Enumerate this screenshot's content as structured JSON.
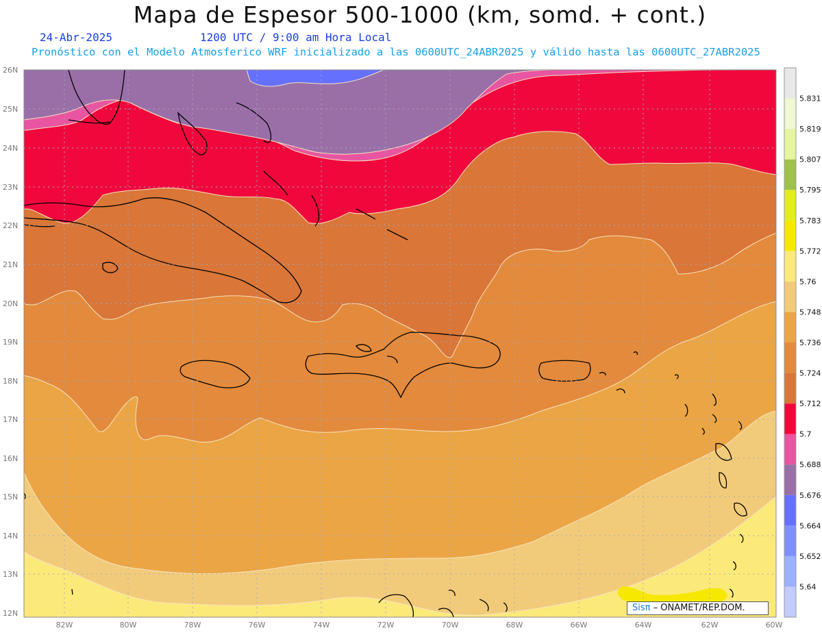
{
  "title": "Mapa de Espesor 500-1000 (km, somd. + cont.)",
  "date": "24-Abr-2025",
  "time": "1200 UTC / 9:00 am Hora Local",
  "description": "Pronóstico con el Modelo Atmosferico WRF inicializado a las 0600UTC_24ABR2025 y válido hasta las  0600UTC_27ABR2025",
  "lat_labels": [
    "26N",
    "25N",
    "24N",
    "23N",
    "22N",
    "21N",
    "20N",
    "19N",
    "18N",
    "17N",
    "16N",
    "15N",
    "14N",
    "13N",
    "12N"
  ],
  "lon_labels": [
    "82W",
    "80W",
    "78W",
    "76W",
    "74W",
    "72W",
    "70W",
    "68W",
    "66W",
    "64W",
    "62W",
    "60W"
  ],
  "colorbar": {
    "levels": [
      "5.64",
      "5.652",
      "5.664",
      "5.676",
      "5.688",
      "5.7",
      "5.712",
      "5.724",
      "5.736",
      "5.748",
      "5.76",
      "5.772",
      "5.783",
      "5.795",
      "5.807",
      "5.819",
      "5.831"
    ],
    "colors": [
      "#c3ccff",
      "#9cb1ff",
      "#7f8fff",
      "#6670ff",
      "#9a6fa8",
      "#e855a0",
      "#f0083c",
      "#d97638",
      "#e38a3c",
      "#eba545",
      "#f2cb7a",
      "#fbe97a",
      "#f6e800",
      "#e2ec22",
      "#9fc24a",
      "#e5f5a0",
      "#f0f8d4",
      "#e8e8e8"
    ]
  },
  "credit": {
    "logo": "Sisπ",
    "text": "– ONAMET/REP.DOM."
  }
}
